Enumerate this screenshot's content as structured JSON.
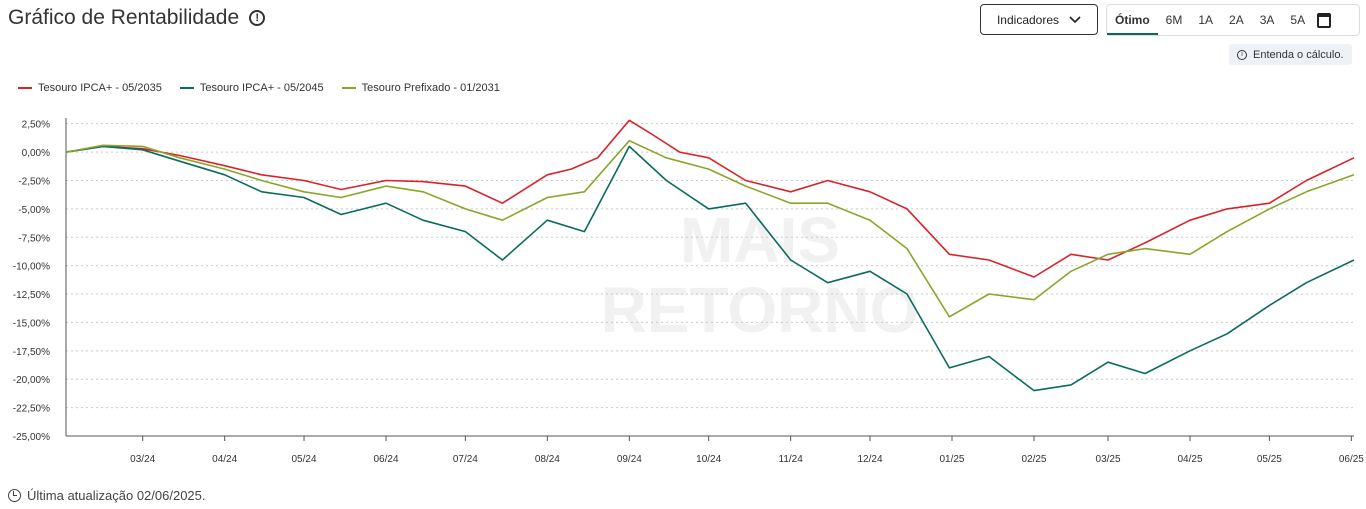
{
  "header": {
    "title": "Gráfico de Rentabilidade",
    "indicators_label": "Indicadores",
    "periods": [
      "Ótimo",
      "6M",
      "1A",
      "2A",
      "3A",
      "5A"
    ],
    "active_period": "Ótimo",
    "calc_note": "Entenda o cálculo."
  },
  "watermark": [
    "MAIS",
    "RETORNO"
  ],
  "footer": {
    "updated": "Última atualização 02/06/2025."
  },
  "colors": {
    "red": "#d8232a",
    "teal": "#0b6b5e",
    "olive": "#8aa62a",
    "accent": "#0a6b5a"
  },
  "chart_data": {
    "type": "line",
    "title": "Gráfico de Rentabilidade",
    "xlabel": "",
    "ylabel": "",
    "ylim": [
      -25,
      3
    ],
    "y_ticks": [
      "2,50%",
      "0,00%",
      "-2,50%",
      "-5,00%",
      "-7,50%",
      "-10,00%",
      "-12,50%",
      "-15,00%",
      "-17,50%",
      "-20,00%",
      "-22,50%",
      "-25,00%"
    ],
    "y_tick_values": [
      2.5,
      0,
      -2.5,
      -5,
      -7.5,
      -10,
      -12.5,
      -15,
      -17.5,
      -20,
      -22.5,
      -25
    ],
    "x_ticks": [
      "03/24",
      "04/24",
      "05/24",
      "06/24",
      "07/24",
      "08/24",
      "09/24",
      "10/24",
      "11/24",
      "12/24",
      "01/25",
      "02/25",
      "03/25",
      "04/25",
      "05/25",
      "06/25"
    ],
    "x_start": "2024-02-01",
    "x_end": "2025-06-02",
    "grid": true,
    "legend_position": "top-left",
    "series": [
      {
        "name": "Tesouro IPCA+ - 05/2035",
        "color": "#d8232a",
        "points": [
          [
            "2024-02-01",
            0.0
          ],
          [
            "2024-02-15",
            0.5
          ],
          [
            "2024-03-01",
            0.3
          ],
          [
            "2024-03-15",
            -0.3
          ],
          [
            "2024-04-01",
            -1.2
          ],
          [
            "2024-04-15",
            -2.0
          ],
          [
            "2024-05-01",
            -2.5
          ],
          [
            "2024-05-15",
            -3.3
          ],
          [
            "2024-06-01",
            -2.5
          ],
          [
            "2024-06-15",
            -2.6
          ],
          [
            "2024-07-01",
            -3.0
          ],
          [
            "2024-07-15",
            -4.5
          ],
          [
            "2024-08-01",
            -2.0
          ],
          [
            "2024-08-10",
            -1.5
          ],
          [
            "2024-08-20",
            -0.5
          ],
          [
            "2024-09-01",
            2.8
          ],
          [
            "2024-09-10",
            1.5
          ],
          [
            "2024-09-20",
            0.0
          ],
          [
            "2024-10-01",
            -0.5
          ],
          [
            "2024-10-15",
            -2.5
          ],
          [
            "2024-11-01",
            -3.5
          ],
          [
            "2024-11-15",
            -2.5
          ],
          [
            "2024-12-01",
            -3.5
          ],
          [
            "2024-12-15",
            -5.0
          ],
          [
            "2024-12-31",
            -9.0
          ],
          [
            "2025-01-15",
            -9.5
          ],
          [
            "2025-02-01",
            -11.0
          ],
          [
            "2025-02-15",
            -9.0
          ],
          [
            "2025-03-01",
            -9.5
          ],
          [
            "2025-03-15",
            -8.0
          ],
          [
            "2025-04-01",
            -6.0
          ],
          [
            "2025-04-15",
            -5.0
          ],
          [
            "2025-05-01",
            -4.5
          ],
          [
            "2025-05-15",
            -2.5
          ],
          [
            "2025-06-02",
            -0.5
          ]
        ]
      },
      {
        "name": "Tesouro IPCA+ - 05/2045",
        "color": "#0b6b5e",
        "points": [
          [
            "2024-02-01",
            0.0
          ],
          [
            "2024-02-15",
            0.5
          ],
          [
            "2024-03-01",
            0.2
          ],
          [
            "2024-03-15",
            -0.8
          ],
          [
            "2024-04-01",
            -2.0
          ],
          [
            "2024-04-15",
            -3.5
          ],
          [
            "2024-05-01",
            -4.0
          ],
          [
            "2024-05-15",
            -5.5
          ],
          [
            "2024-06-01",
            -4.5
          ],
          [
            "2024-06-15",
            -6.0
          ],
          [
            "2024-07-01",
            -7.0
          ],
          [
            "2024-07-15",
            -9.5
          ],
          [
            "2024-08-01",
            -6.0
          ],
          [
            "2024-08-15",
            -7.0
          ],
          [
            "2024-09-01",
            0.5
          ],
          [
            "2024-09-15",
            -2.5
          ],
          [
            "2024-10-01",
            -5.0
          ],
          [
            "2024-10-15",
            -4.5
          ],
          [
            "2024-11-01",
            -9.5
          ],
          [
            "2024-11-15",
            -11.5
          ],
          [
            "2024-12-01",
            -10.5
          ],
          [
            "2024-12-15",
            -12.5
          ],
          [
            "2024-12-31",
            -19.0
          ],
          [
            "2025-01-15",
            -18.0
          ],
          [
            "2025-02-01",
            -21.0
          ],
          [
            "2025-02-15",
            -20.5
          ],
          [
            "2025-03-01",
            -18.5
          ],
          [
            "2025-03-15",
            -19.5
          ],
          [
            "2025-04-01",
            -17.5
          ],
          [
            "2025-04-15",
            -16.0
          ],
          [
            "2025-05-01",
            -13.5
          ],
          [
            "2025-05-15",
            -11.5
          ],
          [
            "2025-06-02",
            -9.5
          ]
        ]
      },
      {
        "name": "Tesouro Prefixado - 01/2031",
        "color": "#8aa62a",
        "points": [
          [
            "2024-02-01",
            0.0
          ],
          [
            "2024-02-15",
            0.6
          ],
          [
            "2024-03-01",
            0.5
          ],
          [
            "2024-03-15",
            -0.5
          ],
          [
            "2024-04-01",
            -1.5
          ],
          [
            "2024-04-15",
            -2.5
          ],
          [
            "2024-05-01",
            -3.5
          ],
          [
            "2024-05-15",
            -4.0
          ],
          [
            "2024-06-01",
            -3.0
          ],
          [
            "2024-06-15",
            -3.5
          ],
          [
            "2024-07-01",
            -5.0
          ],
          [
            "2024-07-15",
            -6.0
          ],
          [
            "2024-08-01",
            -4.0
          ],
          [
            "2024-08-15",
            -3.5
          ],
          [
            "2024-09-01",
            1.0
          ],
          [
            "2024-09-15",
            -0.5
          ],
          [
            "2024-10-01",
            -1.5
          ],
          [
            "2024-10-15",
            -3.0
          ],
          [
            "2024-11-01",
            -4.5
          ],
          [
            "2024-11-15",
            -4.5
          ],
          [
            "2024-12-01",
            -6.0
          ],
          [
            "2024-12-15",
            -8.5
          ],
          [
            "2024-12-31",
            -14.5
          ],
          [
            "2025-01-15",
            -12.5
          ],
          [
            "2025-02-01",
            -13.0
          ],
          [
            "2025-02-15",
            -10.5
          ],
          [
            "2025-03-01",
            -9.0
          ],
          [
            "2025-03-15",
            -8.5
          ],
          [
            "2025-04-01",
            -9.0
          ],
          [
            "2025-04-15",
            -7.0
          ],
          [
            "2025-05-01",
            -5.0
          ],
          [
            "2025-05-15",
            -3.5
          ],
          [
            "2025-06-02",
            -2.0
          ]
        ]
      }
    ]
  }
}
